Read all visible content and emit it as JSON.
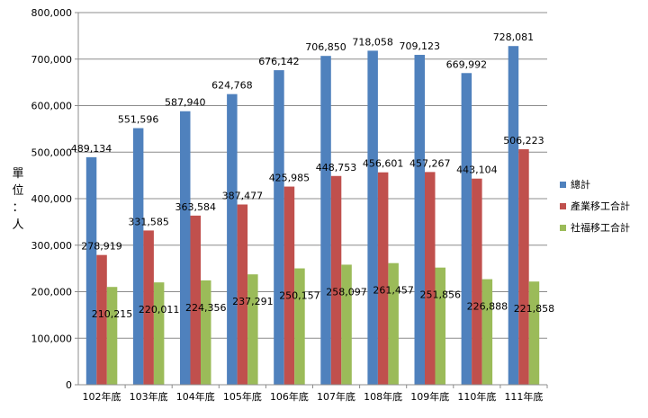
{
  "chart_data": {
    "type": "bar",
    "categories": [
      "102年底",
      "103年底",
      "104年底",
      "105年底",
      "106年底",
      "107年底",
      "108年底",
      "109年底",
      "110年底",
      "111年底"
    ],
    "series": [
      {
        "name": "總計",
        "color": "#4F81BD",
        "values": [
          489134,
          551596,
          587940,
          624768,
          676142,
          706850,
          718058,
          709123,
          669992,
          728081
        ]
      },
      {
        "name": "產業移工合計",
        "color": "#C0504D",
        "values": [
          278919,
          331585,
          363584,
          387477,
          425985,
          448753,
          456601,
          457267,
          443104,
          506223
        ]
      },
      {
        "name": "社福移工合計",
        "color": "#9BBB59",
        "values": [
          210215,
          220011,
          224356,
          237291,
          250157,
          258097,
          261457,
          251856,
          226888,
          221858
        ]
      }
    ],
    "ylabel": "單位：人",
    "ylim": [
      0,
      800000
    ],
    "yticks": [
      0,
      100000,
      200000,
      300000,
      400000,
      500000,
      600000,
      700000,
      800000
    ],
    "grid": true,
    "legend_position": "right"
  }
}
